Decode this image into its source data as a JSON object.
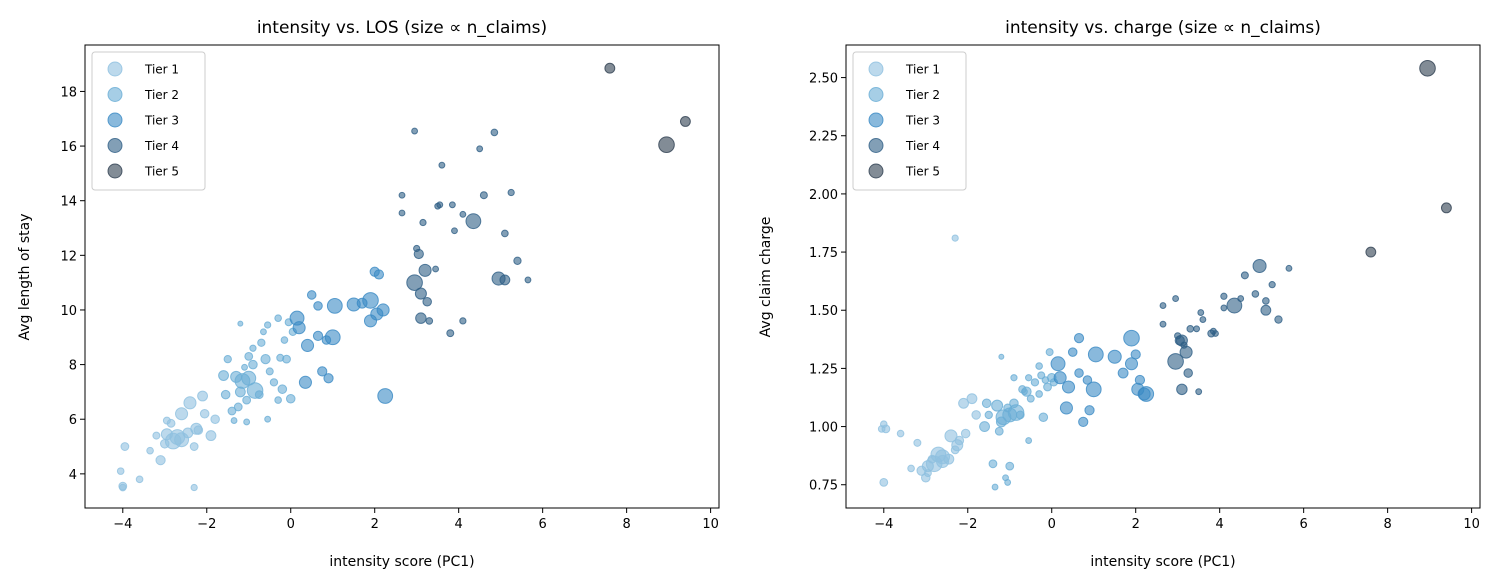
{
  "chart_data": [
    {
      "type": "scatter",
      "title": "intensity vs. LOS (size ∝ n_claims)",
      "xlabel": "intensity score (PC1)",
      "ylabel": "Avg length of stay",
      "xlim": [
        -4.9,
        10.2
      ],
      "ylim": [
        2.75,
        19.7
      ],
      "xticks": [
        -4,
        -2,
        0,
        2,
        4,
        6,
        8,
        10
      ],
      "yticks": [
        4,
        6,
        8,
        10,
        12,
        14,
        16,
        18
      ],
      "y_field": "los",
      "legend_position": "upper-left",
      "grid": false
    },
    {
      "type": "scatter",
      "title": "intensity vs. charge (size ∝ n_claims)",
      "xlabel": "intensity score (PC1)",
      "ylabel": "Avg claim charge",
      "xlim": [
        -4.9,
        10.2
      ],
      "ylim": [
        0.65,
        2.64
      ],
      "xticks": [
        -4,
        -2,
        0,
        2,
        4,
        6,
        8,
        10
      ],
      "yticks": [
        "0.75",
        "1.00",
        "1.25",
        "1.50",
        "1.75",
        "2.00",
        "2.25",
        "2.50"
      ],
      "y_field": "charge",
      "legend_position": "upper-left",
      "grid": false
    }
  ],
  "legend": [
    {
      "label": "Tier 1",
      "color": "#8fc0e0"
    },
    {
      "label": "Tier 2",
      "color": "#6aaed6"
    },
    {
      "label": "Tier 3",
      "color": "#3a8ac4"
    },
    {
      "label": "Tier 4",
      "color": "#2f5f86"
    },
    {
      "label": "Tier 5",
      "color": "#2e3f50"
    }
  ],
  "points": [
    {
      "intensity": 7.6,
      "los": 18.85,
      "charge": 1.75,
      "tier": 5,
      "n": 40
    },
    {
      "intensity": 8.95,
      "los": 16.05,
      "charge": 2.54,
      "tier": 5,
      "n": 100
    },
    {
      "intensity": 9.4,
      "los": 16.9,
      "charge": 1.94,
      "tier": 5,
      "n": 40
    },
    {
      "intensity": 2.95,
      "los": 16.55,
      "charge": 1.55,
      "tier": 4,
      "n": 14
    },
    {
      "intensity": 3.6,
      "los": 15.3,
      "charge": 1.46,
      "tier": 4,
      "n": 14
    },
    {
      "intensity": 4.5,
      "los": 15.9,
      "charge": 1.55,
      "tier": 4,
      "n": 14
    },
    {
      "intensity": 4.85,
      "los": 16.5,
      "charge": 1.57,
      "tier": 4,
      "n": 18
    },
    {
      "intensity": 2.65,
      "los": 14.2,
      "charge": 1.52,
      "tier": 4,
      "n": 14
    },
    {
      "intensity": 3.55,
      "los": 13.85,
      "charge": 1.49,
      "tier": 4,
      "n": 14
    },
    {
      "intensity": 3.85,
      "los": 13.85,
      "charge": 1.41,
      "tier": 4,
      "n": 14
    },
    {
      "intensity": 4.6,
      "los": 14.2,
      "charge": 1.65,
      "tier": 4,
      "n": 20
    },
    {
      "intensity": 5.25,
      "los": 14.3,
      "charge": 1.61,
      "tier": 4,
      "n": 16
    },
    {
      "intensity": 2.65,
      "los": 13.55,
      "charge": 1.44,
      "tier": 4,
      "n": 14
    },
    {
      "intensity": 3.15,
      "los": 13.2,
      "charge": 1.35,
      "tier": 4,
      "n": 16
    },
    {
      "intensity": 4.1,
      "los": 13.5,
      "charge": 1.51,
      "tier": 4,
      "n": 14
    },
    {
      "intensity": 4.35,
      "los": 13.25,
      "charge": 1.52,
      "tier": 4,
      "n": 90
    },
    {
      "intensity": 5.1,
      "los": 12.8,
      "charge": 1.54,
      "tier": 4,
      "n": 18
    },
    {
      "intensity": 3.0,
      "los": 12.25,
      "charge": 1.39,
      "tier": 4,
      "n": 16
    },
    {
      "intensity": 3.05,
      "los": 12.05,
      "charge": 1.37,
      "tier": 4,
      "n": 35
    },
    {
      "intensity": 5.4,
      "los": 11.8,
      "charge": 1.46,
      "tier": 4,
      "n": 22
    },
    {
      "intensity": 3.2,
      "los": 11.45,
      "charge": 1.32,
      "tier": 4,
      "n": 60
    },
    {
      "intensity": 2.95,
      "los": 11.0,
      "charge": 1.28,
      "tier": 4,
      "n": 100
    },
    {
      "intensity": 3.45,
      "los": 11.5,
      "charge": 1.42,
      "tier": 4,
      "n": 14
    },
    {
      "intensity": 4.95,
      "los": 11.15,
      "charge": 1.69,
      "tier": 4,
      "n": 70
    },
    {
      "intensity": 5.1,
      "los": 11.1,
      "charge": 1.5,
      "tier": 4,
      "n": 40
    },
    {
      "intensity": 5.65,
      "los": 11.1,
      "charge": 1.68,
      "tier": 4,
      "n": 14
    },
    {
      "intensity": 3.1,
      "los": 10.6,
      "charge": 1.37,
      "tier": 4,
      "n": 50
    },
    {
      "intensity": 3.25,
      "los": 10.3,
      "charge": 1.23,
      "tier": 4,
      "n": 30
    },
    {
      "intensity": 3.1,
      "los": 9.7,
      "charge": 1.16,
      "tier": 4,
      "n": 45
    },
    {
      "intensity": 3.3,
      "los": 9.6,
      "charge": 1.42,
      "tier": 4,
      "n": 18
    },
    {
      "intensity": 3.8,
      "los": 9.15,
      "charge": 1.4,
      "tier": 4,
      "n": 20
    },
    {
      "intensity": 4.1,
      "los": 9.6,
      "charge": 1.56,
      "tier": 4,
      "n": 16
    },
    {
      "intensity": 3.5,
      "los": 13.8,
      "charge": 1.15,
      "tier": 4,
      "n": 14
    },
    {
      "intensity": 3.9,
      "los": 12.9,
      "charge": 1.4,
      "tier": 4,
      "n": 14
    },
    {
      "intensity": 0.15,
      "los": 9.7,
      "charge": 1.27,
      "tier": 3,
      "n": 80
    },
    {
      "intensity": 0.2,
      "los": 9.35,
      "charge": 1.21,
      "tier": 3,
      "n": 60
    },
    {
      "intensity": 0.5,
      "los": 10.55,
      "charge": 1.32,
      "tier": 3,
      "n": 30
    },
    {
      "intensity": 0.65,
      "los": 9.05,
      "charge": 1.38,
      "tier": 3,
      "n": 35
    },
    {
      "intensity": 0.4,
      "los": 8.7,
      "charge": 1.17,
      "tier": 3,
      "n": 60
    },
    {
      "intensity": 0.85,
      "los": 8.9,
      "charge": 1.2,
      "tier": 3,
      "n": 30
    },
    {
      "intensity": 1.0,
      "los": 9.0,
      "charge": 1.16,
      "tier": 3,
      "n": 90
    },
    {
      "intensity": 0.35,
      "los": 7.35,
      "charge": 1.08,
      "tier": 3,
      "n": 60
    },
    {
      "intensity": 0.75,
      "los": 7.75,
      "charge": 1.02,
      "tier": 3,
      "n": 35
    },
    {
      "intensity": 0.9,
      "los": 7.5,
      "charge": 1.07,
      "tier": 3,
      "n": 35
    },
    {
      "intensity": 1.05,
      "los": 10.15,
      "charge": 1.31,
      "tier": 3,
      "n": 90
    },
    {
      "intensity": 1.5,
      "los": 10.2,
      "charge": 1.3,
      "tier": 3,
      "n": 70
    },
    {
      "intensity": 1.9,
      "los": 10.35,
      "charge": 1.38,
      "tier": 3,
      "n": 100
    },
    {
      "intensity": 1.9,
      "los": 9.6,
      "charge": 1.27,
      "tier": 3,
      "n": 60
    },
    {
      "intensity": 2.0,
      "los": 11.4,
      "charge": 1.31,
      "tier": 3,
      "n": 35
    },
    {
      "intensity": 2.1,
      "los": 11.3,
      "charge": 1.2,
      "tier": 3,
      "n": 35
    },
    {
      "intensity": 2.05,
      "los": 9.85,
      "charge": 1.16,
      "tier": 3,
      "n": 60
    },
    {
      "intensity": 2.2,
      "los": 10.0,
      "charge": 1.14,
      "tier": 3,
      "n": 60
    },
    {
      "intensity": 2.25,
      "los": 6.85,
      "charge": 1.14,
      "tier": 3,
      "n": 90
    },
    {
      "intensity": 0.65,
      "los": 10.15,
      "charge": 1.23,
      "tier": 3,
      "n": 30
    },
    {
      "intensity": 1.7,
      "los": 10.25,
      "charge": 1.23,
      "tier": 3,
      "n": 40
    },
    {
      "intensity": -1.5,
      "los": 8.2,
      "charge": 1.05,
      "tier": 2,
      "n": 22
    },
    {
      "intensity": -1.3,
      "los": 7.55,
      "charge": 1.09,
      "tier": 2,
      "n": 50
    },
    {
      "intensity": -1.2,
      "los": 7.0,
      "charge": 1.02,
      "tier": 2,
      "n": 40
    },
    {
      "intensity": -1.05,
      "los": 6.7,
      "charge": 1.08,
      "tier": 2,
      "n": 25
    },
    {
      "intensity": -1.0,
      "los": 7.5,
      "charge": 1.05,
      "tier": 2,
      "n": 80
    },
    {
      "intensity": -0.9,
      "los": 8.0,
      "charge": 1.1,
      "tier": 2,
      "n": 30
    },
    {
      "intensity": -0.75,
      "los": 6.9,
      "charge": 1.05,
      "tier": 2,
      "n": 25
    },
    {
      "intensity": -0.7,
      "los": 8.8,
      "charge": 1.16,
      "tier": 2,
      "n": 22
    },
    {
      "intensity": -0.6,
      "los": 8.2,
      "charge": 1.15,
      "tier": 2,
      "n": 35
    },
    {
      "intensity": -0.5,
      "los": 7.75,
      "charge": 1.12,
      "tier": 2,
      "n": 20
    },
    {
      "intensity": -0.4,
      "los": 7.35,
      "charge": 1.19,
      "tier": 2,
      "n": 22
    },
    {
      "intensity": -0.3,
      "los": 6.7,
      "charge": 1.14,
      "tier": 2,
      "n": 18
    },
    {
      "intensity": -0.25,
      "los": 8.25,
      "charge": 1.22,
      "tier": 2,
      "n": 20
    },
    {
      "intensity": -0.15,
      "los": 8.9,
      "charge": 1.2,
      "tier": 2,
      "n": 18
    },
    {
      "intensity": 0.05,
      "los": 9.2,
      "charge": 1.19,
      "tier": 2,
      "n": 22
    },
    {
      "intensity": -0.05,
      "los": 9.55,
      "charge": 1.32,
      "tier": 2,
      "n": 20
    },
    {
      "intensity": -0.3,
      "los": 9.7,
      "charge": 1.26,
      "tier": 2,
      "n": 18
    },
    {
      "intensity": -0.55,
      "los": 9.45,
      "charge": 1.21,
      "tier": 2,
      "n": 16
    },
    {
      "intensity": -0.65,
      "los": 9.2,
      "charge": 1.15,
      "tier": 2,
      "n": 14
    },
    {
      "intensity": -0.9,
      "los": 8.6,
      "charge": 1.21,
      "tier": 2,
      "n": 16
    },
    {
      "intensity": -1.2,
      "los": 9.5,
      "charge": 1.3,
      "tier": 2,
      "n": 10
    },
    {
      "intensity": -1.05,
      "los": 5.9,
      "charge": 0.76,
      "tier": 2,
      "n": 14
    },
    {
      "intensity": -1.25,
      "los": 6.45,
      "charge": 0.98,
      "tier": 2,
      "n": 25
    },
    {
      "intensity": -1.4,
      "los": 6.3,
      "charge": 0.84,
      "tier": 2,
      "n": 25
    },
    {
      "intensity": -1.55,
      "los": 6.9,
      "charge": 1.1,
      "tier": 2,
      "n": 30
    },
    {
      "intensity": -1.6,
      "los": 7.6,
      "charge": 1.0,
      "tier": 2,
      "n": 40
    },
    {
      "intensity": -1.35,
      "los": 5.95,
      "charge": 0.74,
      "tier": 2,
      "n": 14
    },
    {
      "intensity": -0.55,
      "los": 6.0,
      "charge": 0.94,
      "tier": 2,
      "n": 14
    },
    {
      "intensity": -0.1,
      "los": 8.2,
      "charge": 1.17,
      "tier": 2,
      "n": 25
    },
    {
      "intensity": -0.85,
      "los": 7.05,
      "charge": 1.06,
      "tier": 2,
      "n": 100
    },
    {
      "intensity": -1.15,
      "los": 7.4,
      "charge": 1.04,
      "tier": 2,
      "n": 90
    },
    {
      "intensity": -0.2,
      "los": 7.1,
      "charge": 1.04,
      "tier": 2,
      "n": 30
    },
    {
      "intensity": 0.0,
      "los": 6.75,
      "charge": 1.21,
      "tier": 2,
      "n": 30
    },
    {
      "intensity": -1.0,
      "los": 8.3,
      "charge": 0.83,
      "tier": 2,
      "n": 25
    },
    {
      "intensity": -1.1,
      "los": 7.9,
      "charge": 0.78,
      "tier": 2,
      "n": 14
    },
    {
      "intensity": -4.05,
      "los": 4.1,
      "charge": 0.99,
      "tier": 1,
      "n": 18
    },
    {
      "intensity": -4.0,
      "los": 3.55,
      "charge": 0.76,
      "tier": 1,
      "n": 25
    },
    {
      "intensity": -4.0,
      "los": 3.5,
      "charge": 1.01,
      "tier": 1,
      "n": 18
    },
    {
      "intensity": -3.95,
      "los": 5.0,
      "charge": 0.99,
      "tier": 1,
      "n": 25
    },
    {
      "intensity": -3.6,
      "los": 3.8,
      "charge": 0.97,
      "tier": 1,
      "n": 18
    },
    {
      "intensity": -3.35,
      "los": 4.85,
      "charge": 0.82,
      "tier": 1,
      "n": 18
    },
    {
      "intensity": -3.2,
      "los": 5.4,
      "charge": 0.93,
      "tier": 1,
      "n": 20
    },
    {
      "intensity": -3.1,
      "los": 4.5,
      "charge": 0.81,
      "tier": 1,
      "n": 35
    },
    {
      "intensity": -3.0,
      "los": 5.1,
      "charge": 0.78,
      "tier": 1,
      "n": 30
    },
    {
      "intensity": -2.95,
      "los": 5.45,
      "charge": 0.83,
      "tier": 1,
      "n": 50
    },
    {
      "intensity": -2.85,
      "los": 5.85,
      "charge": 0.86,
      "tier": 1,
      "n": 25
    },
    {
      "intensity": -2.8,
      "los": 5.2,
      "charge": 0.84,
      "tier": 1,
      "n": 100
    },
    {
      "intensity": -2.7,
      "los": 5.35,
      "charge": 0.88,
      "tier": 1,
      "n": 90
    },
    {
      "intensity": -2.6,
      "los": 6.2,
      "charge": 0.85,
      "tier": 1,
      "n": 60
    },
    {
      "intensity": -2.45,
      "los": 5.5,
      "charge": 0.86,
      "tier": 1,
      "n": 40
    },
    {
      "intensity": -2.4,
      "los": 6.6,
      "charge": 0.96,
      "tier": 1,
      "n": 60
    },
    {
      "intensity": -2.3,
      "los": 5.0,
      "charge": 0.9,
      "tier": 1,
      "n": 25
    },
    {
      "intensity": -2.3,
      "los": 3.5,
      "charge": 1.81,
      "tier": 1,
      "n": 16
    },
    {
      "intensity": -2.2,
      "los": 5.6,
      "charge": 0.94,
      "tier": 1,
      "n": 30
    },
    {
      "intensity": -2.1,
      "los": 6.85,
      "charge": 1.1,
      "tier": 1,
      "n": 40
    },
    {
      "intensity": -2.05,
      "los": 6.2,
      "charge": 0.97,
      "tier": 1,
      "n": 30
    },
    {
      "intensity": -1.9,
      "los": 5.4,
      "charge": 1.12,
      "tier": 1,
      "n": 40
    },
    {
      "intensity": -1.8,
      "los": 6.0,
      "charge": 1.05,
      "tier": 1,
      "n": 30
    },
    {
      "intensity": -2.6,
      "los": 5.25,
      "charge": 0.87,
      "tier": 1,
      "n": 80
    },
    {
      "intensity": -2.95,
      "los": 5.95,
      "charge": 0.8,
      "tier": 1,
      "n": 20
    },
    {
      "intensity": -2.25,
      "los": 5.65,
      "charge": 0.92,
      "tier": 1,
      "n": 50
    }
  ]
}
